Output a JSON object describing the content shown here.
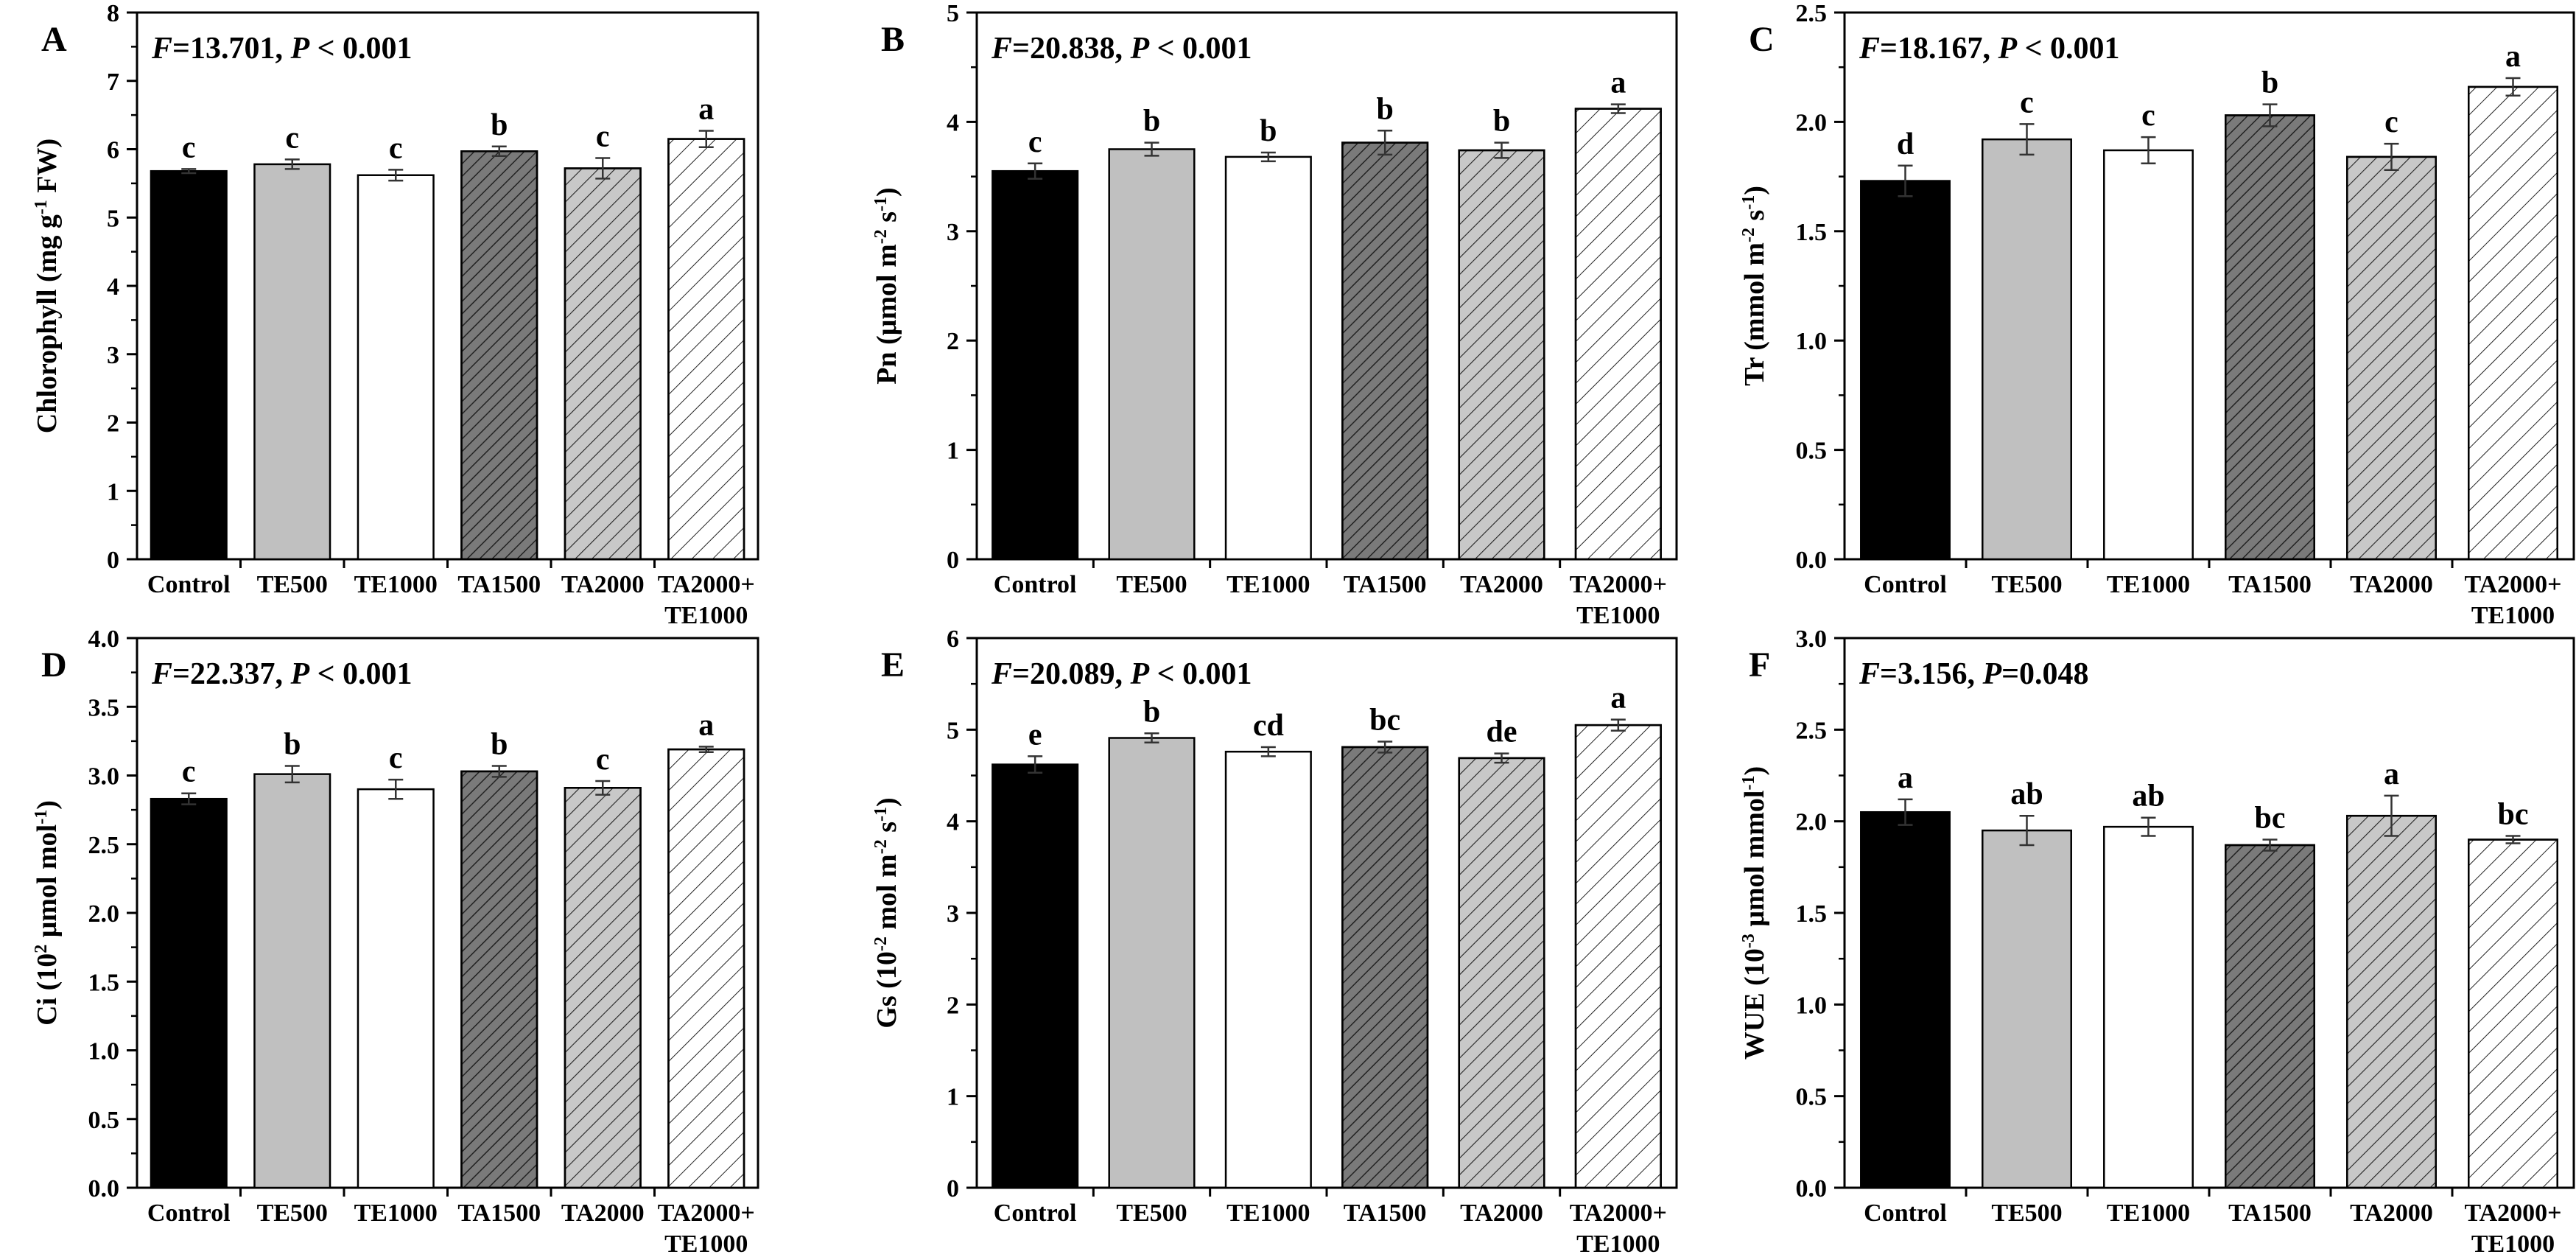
{
  "figure": {
    "colors": {
      "axis": "#000000",
      "control": "#000000",
      "te500": "#c0c0c0",
      "te1000": "#ffffff",
      "ta1500": "#7a7a7a",
      "ta2000": "#c8c8c8",
      "combo": "#ffffff",
      "hatch": "#222222"
    }
  },
  "chart_data": [
    {
      "panel": "A",
      "type": "bar",
      "stat_f": "13.701",
      "stat_p": "P < 0.001",
      "ylabel_main": "Chlorophyll (mg g",
      "ylabel_sup": "-1",
      "ylabel_tail": " FW)",
      "ylim": [
        0,
        8
      ],
      "ytick_step": 1,
      "ytick_labels": [
        "0",
        "1",
        "2",
        "3",
        "4",
        "5",
        "6",
        "7",
        "8"
      ],
      "categories": [
        [
          "Control"
        ],
        [
          "TE500"
        ],
        [
          "TE1000"
        ],
        [
          "TA1500"
        ],
        [
          "TA2000"
        ],
        [
          "TA2000+",
          "TE1000"
        ]
      ],
      "values": [
        5.68,
        5.78,
        5.62,
        5.97,
        5.72,
        6.15
      ],
      "errors": [
        0.03,
        0.07,
        0.08,
        0.07,
        0.15,
        0.12
      ],
      "letters": [
        "c",
        "c",
        "c",
        "b",
        "c",
        "a"
      ]
    },
    {
      "panel": "B",
      "type": "bar",
      "stat_f": "20.838",
      "stat_p": "P < 0.001",
      "ylabel_main": "Pn (μmol m",
      "ylabel_sup": "-2",
      "ylabel_mid": " s",
      "ylabel_sup2": "-1",
      "ylabel_tail": ")",
      "ylim": [
        0,
        5
      ],
      "ytick_step": 1,
      "ytick_labels": [
        "0",
        "1",
        "2",
        "3",
        "4",
        "5"
      ],
      "categories": [
        [
          "Control"
        ],
        [
          "TE500"
        ],
        [
          "TE1000"
        ],
        [
          "TA1500"
        ],
        [
          "TA2000"
        ],
        [
          "TA2000+",
          "TE1000"
        ]
      ],
      "values": [
        3.55,
        3.75,
        3.68,
        3.81,
        3.74,
        4.12
      ],
      "errors": [
        0.07,
        0.06,
        0.04,
        0.11,
        0.07,
        0.04
      ],
      "letters": [
        "c",
        "b",
        "b",
        "b",
        "b",
        "a"
      ]
    },
    {
      "panel": "C",
      "type": "bar",
      "stat_f": "18.167",
      "stat_p": "P < 0.001",
      "ylabel_main": "Tr (mmol m",
      "ylabel_sup": "-2",
      "ylabel_mid": " s",
      "ylabel_sup2": "-1",
      "ylabel_tail": ")",
      "ylim": [
        0,
        2.5
      ],
      "ytick_step": 0.5,
      "ytick_labels": [
        "0.0",
        "0.5",
        "1.0",
        "1.5",
        "2.0",
        "2.5"
      ],
      "categories": [
        [
          "Control"
        ],
        [
          "TE500"
        ],
        [
          "TE1000"
        ],
        [
          "TA1500"
        ],
        [
          "TA2000"
        ],
        [
          "TA2000+",
          "TE1000"
        ]
      ],
      "values": [
        1.73,
        1.92,
        1.87,
        2.03,
        1.84,
        2.16
      ],
      "errors": [
        0.07,
        0.07,
        0.06,
        0.05,
        0.06,
        0.04
      ],
      "letters": [
        "d",
        "c",
        "c",
        "b",
        "c",
        "a"
      ]
    },
    {
      "panel": "D",
      "type": "bar",
      "stat_f": "22.337",
      "stat_p": "P < 0.001",
      "ylabel_main": "Ci (10",
      "ylabel_sup": "2",
      "ylabel_mid": " μmol mol",
      "ylabel_sup2": "-1",
      "ylabel_tail": ")",
      "ylim": [
        0,
        4
      ],
      "ytick_step": 0.5,
      "ytick_labels": [
        "0.0",
        "0.5",
        "1.0",
        "1.5",
        "2.0",
        "2.5",
        "3.0",
        "3.5",
        "4.0"
      ],
      "categories": [
        [
          "Control"
        ],
        [
          "TE500"
        ],
        [
          "TE1000"
        ],
        [
          "TA1500"
        ],
        [
          "TA2000"
        ],
        [
          "TA2000+",
          "TE1000"
        ]
      ],
      "values": [
        2.83,
        3.01,
        2.9,
        3.03,
        2.91,
        3.19
      ],
      "errors": [
        0.04,
        0.06,
        0.07,
        0.04,
        0.05,
        0.02
      ],
      "letters": [
        "c",
        "b",
        "c",
        "b",
        "c",
        "a"
      ]
    },
    {
      "panel": "E",
      "type": "bar",
      "stat_f": "20.089",
      "stat_p": "P < 0.001",
      "ylabel_main": "Gs (10",
      "ylabel_sup": "-2",
      "ylabel_mid": " mol m",
      "ylabel_sup2": "-2",
      "ylabel_mid2": " s",
      "ylabel_sup3": "-1",
      "ylabel_tail": ")",
      "ylim": [
        0,
        6
      ],
      "ytick_step": 1,
      "ytick_labels": [
        "0",
        "1",
        "2",
        "3",
        "4",
        "5",
        "6"
      ],
      "categories": [
        [
          "Control"
        ],
        [
          "TE500"
        ],
        [
          "TE1000"
        ],
        [
          "TA1500"
        ],
        [
          "TA2000"
        ],
        [
          "TA2000+",
          "TE1000"
        ]
      ],
      "values": [
        4.62,
        4.91,
        4.76,
        4.81,
        4.69,
        5.05
      ],
      "errors": [
        0.09,
        0.05,
        0.05,
        0.06,
        0.05,
        0.06
      ],
      "letters": [
        "e",
        "b",
        "cd",
        "bc",
        "de",
        "a"
      ]
    },
    {
      "panel": "F",
      "type": "bar",
      "stat_f": "3.156",
      "stat_p": "P=0.048",
      "ylabel_main": "WUE (10",
      "ylabel_sup": "-3",
      "ylabel_mid": " μmol mmol",
      "ylabel_sup2": "-1",
      "ylabel_tail": ")",
      "ylim": [
        0,
        3
      ],
      "ytick_step": 0.5,
      "ytick_labels": [
        "0.0",
        "0.5",
        "1.0",
        "1.5",
        "2.0",
        "2.5",
        "3.0"
      ],
      "categories": [
        [
          "Control"
        ],
        [
          "TE500"
        ],
        [
          "TE1000"
        ],
        [
          "TA1500"
        ],
        [
          "TA2000"
        ],
        [
          "TA2000+",
          "TE1000"
        ]
      ],
      "values": [
        2.05,
        1.95,
        1.97,
        1.87,
        2.03,
        1.9
      ],
      "errors": [
        0.07,
        0.08,
        0.05,
        0.03,
        0.11,
        0.02
      ],
      "letters": [
        "a",
        "ab",
        "ab",
        "bc",
        "a",
        "bc"
      ]
    }
  ]
}
